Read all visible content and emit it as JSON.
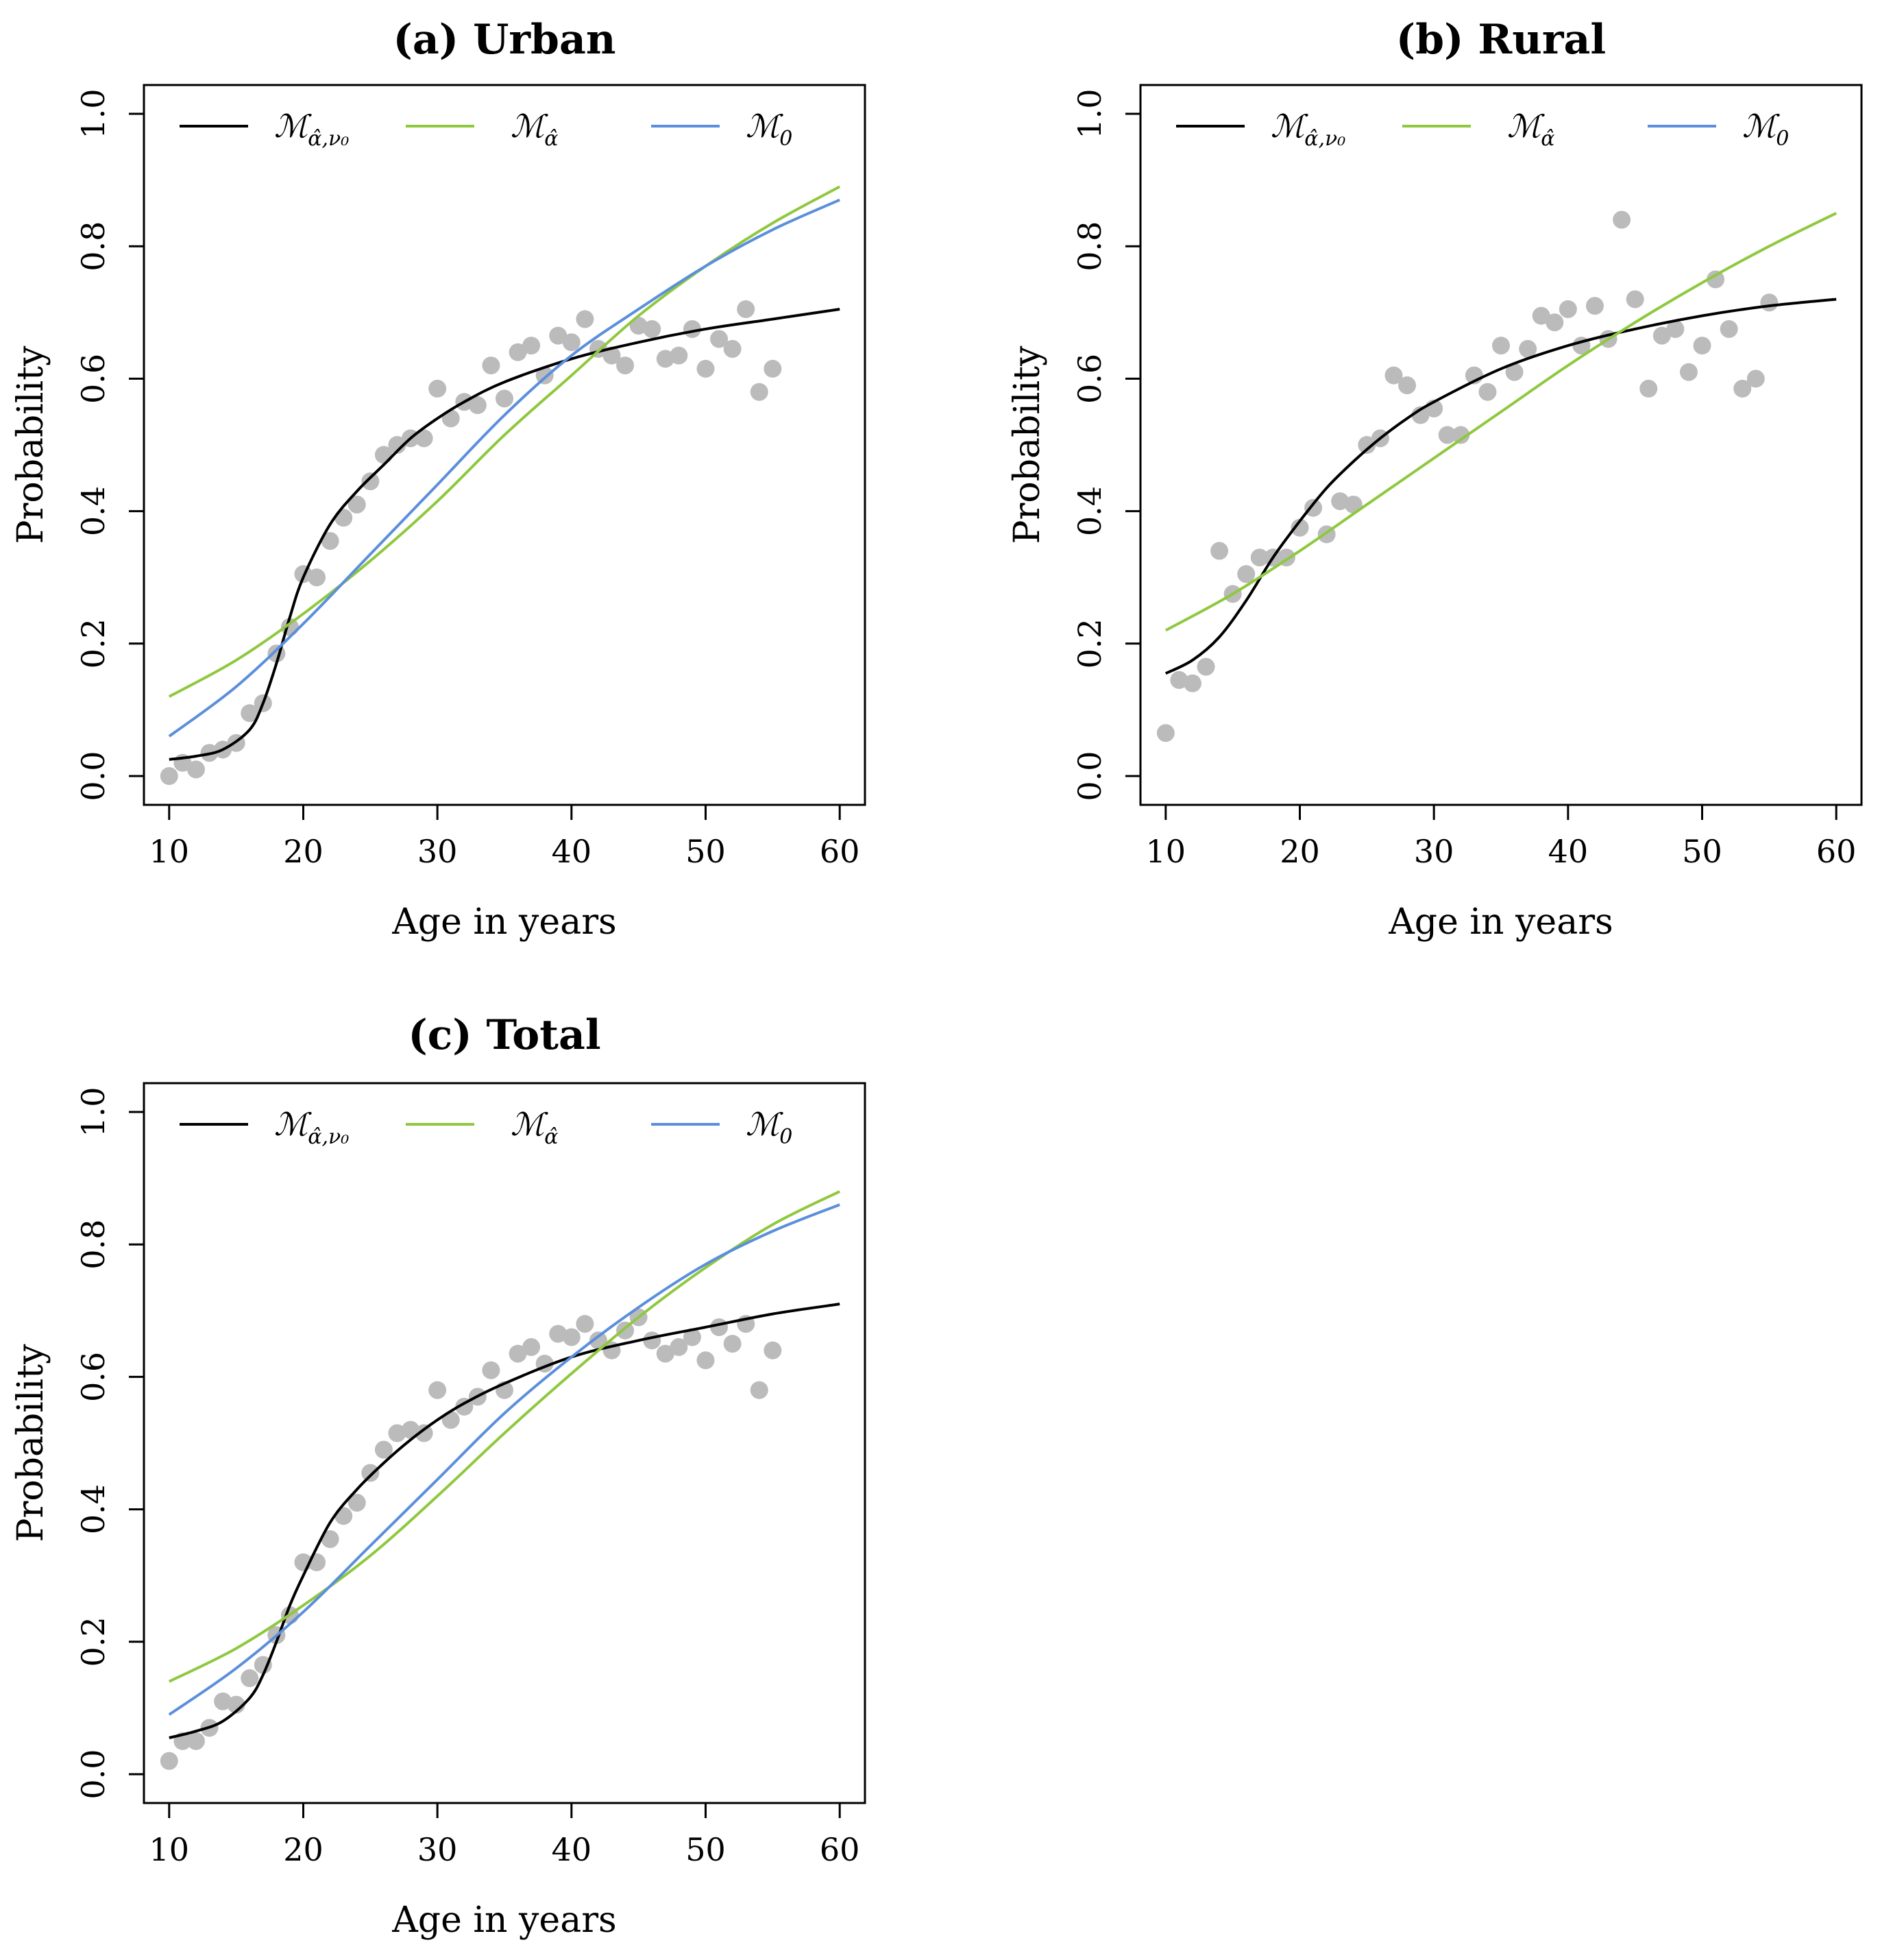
{
  "colors": {
    "black": "#000000",
    "green": "#8fc83f",
    "blue": "#5b8fdc",
    "points": "#bbbbbb"
  },
  "legend": [
    {
      "key": "black",
      "color": "#000000",
      "base": "ℳ",
      "sub": "α̂,ν₀"
    },
    {
      "key": "green",
      "color": "#8fc83f",
      "base": "ℳ",
      "sub": "α̂"
    },
    {
      "key": "blue",
      "color": "#5b8fdc",
      "base": "ℳ",
      "sub": "0"
    }
  ],
  "chart_data": [
    {
      "type": "line",
      "title": "(a) Urban",
      "xlabel": "Age in years",
      "ylabel": "Probability",
      "xlim": [
        10,
        60
      ],
      "ylim": [
        0,
        1
      ],
      "xticks": [
        10,
        20,
        30,
        40,
        50,
        60
      ],
      "yticks": [
        0.0,
        0.2,
        0.4,
        0.6,
        0.8,
        1.0
      ],
      "xtick_labels": [
        "10",
        "20",
        "30",
        "40",
        "50",
        "60"
      ],
      "ytick_labels": [
        "0.0",
        "0.2",
        "0.4",
        "0.6",
        "0.8",
        "1.0"
      ],
      "legend_position": "top",
      "points": {
        "x": [
          10,
          11,
          12,
          13,
          14,
          15,
          16,
          17,
          18,
          19,
          20,
          21,
          22,
          23,
          24,
          25,
          26,
          27,
          28,
          29,
          30,
          31,
          32,
          33,
          34,
          35,
          36,
          37,
          38,
          39,
          40,
          41,
          42,
          43,
          44,
          45,
          46,
          47,
          48,
          49,
          50,
          51,
          52,
          53,
          54,
          55
        ],
        "y": [
          0.0,
          0.02,
          0.01,
          0.035,
          0.04,
          0.05,
          0.095,
          0.11,
          0.185,
          0.225,
          0.305,
          0.3,
          0.355,
          0.39,
          0.41,
          0.445,
          0.485,
          0.5,
          0.51,
          0.51,
          0.585,
          0.54,
          0.565,
          0.56,
          0.62,
          0.57,
          0.64,
          0.65,
          0.605,
          0.665,
          0.655,
          0.69,
          0.645,
          0.635,
          0.62,
          0.68,
          0.675,
          0.63,
          0.635,
          0.675,
          0.615,
          0.66,
          0.645,
          0.705,
          0.58,
          0.615
        ]
      },
      "series": [
        {
          "name": "M_{alpha-hat, nu0}",
          "color": "#000000",
          "x": [
            10,
            12,
            14,
            16,
            17,
            18,
            19,
            20,
            22,
            24,
            26,
            28,
            30,
            32,
            35,
            40,
            45,
            50,
            55,
            60
          ],
          "y": [
            0.025,
            0.03,
            0.04,
            0.07,
            0.11,
            0.17,
            0.24,
            0.3,
            0.38,
            0.43,
            0.47,
            0.51,
            0.54,
            0.565,
            0.595,
            0.63,
            0.655,
            0.675,
            0.69,
            0.705
          ]
        },
        {
          "name": "M_{alpha-hat}",
          "color": "#8fc83f",
          "x": [
            10,
            15,
            20,
            25,
            30,
            35,
            40,
            45,
            50,
            55,
            60
          ],
          "y": [
            0.12,
            0.175,
            0.245,
            0.325,
            0.415,
            0.515,
            0.605,
            0.695,
            0.77,
            0.835,
            0.89
          ]
        },
        {
          "name": "M_0",
          "color": "#5b8fdc",
          "x": [
            10,
            15,
            20,
            25,
            30,
            35,
            40,
            45,
            50,
            55,
            60
          ],
          "y": [
            0.06,
            0.135,
            0.23,
            0.335,
            0.44,
            0.545,
            0.635,
            0.705,
            0.77,
            0.825,
            0.87
          ]
        }
      ]
    },
    {
      "type": "line",
      "title": "(b) Rural",
      "xlabel": "Age in years",
      "ylabel": "Probability",
      "xlim": [
        10,
        60
      ],
      "ylim": [
        0,
        1
      ],
      "xticks": [
        10,
        20,
        30,
        40,
        50,
        60
      ],
      "yticks": [
        0.0,
        0.2,
        0.4,
        0.6,
        0.8,
        1.0
      ],
      "xtick_labels": [
        "10",
        "20",
        "30",
        "40",
        "50",
        "60"
      ],
      "ytick_labels": [
        "0.0",
        "0.2",
        "0.4",
        "0.6",
        "0.8",
        "1.0"
      ],
      "legend_position": "top",
      "points": {
        "x": [
          10,
          11,
          12,
          13,
          14,
          15,
          16,
          17,
          18,
          19,
          20,
          21,
          22,
          23,
          24,
          25,
          26,
          27,
          28,
          29,
          30,
          31,
          32,
          33,
          34,
          35,
          36,
          37,
          38,
          39,
          40,
          41,
          42,
          43,
          44,
          45,
          46,
          47,
          48,
          49,
          50,
          51,
          52,
          53,
          54,
          55
        ],
        "y": [
          0.065,
          0.145,
          0.14,
          0.165,
          0.34,
          0.275,
          0.305,
          0.33,
          0.33,
          0.33,
          0.375,
          0.405,
          0.365,
          0.415,
          0.41,
          0.5,
          0.51,
          0.605,
          0.59,
          0.545,
          0.555,
          0.515,
          0.515,
          0.605,
          0.58,
          0.65,
          0.61,
          0.645,
          0.695,
          0.685,
          0.705,
          0.65,
          0.71,
          0.66,
          0.84,
          0.72,
          0.585,
          0.665,
          0.675,
          0.61,
          0.65,
          0.75,
          0.675,
          0.585,
          0.6,
          0.715
        ]
      },
      "series": [
        {
          "name": "M_{alpha-hat, nu0}",
          "color": "#000000",
          "x": [
            10,
            12,
            14,
            16,
            18,
            20,
            22,
            24,
            26,
            28,
            30,
            35,
            40,
            45,
            50,
            55,
            60
          ],
          "y": [
            0.155,
            0.175,
            0.21,
            0.265,
            0.33,
            0.385,
            0.435,
            0.475,
            0.51,
            0.54,
            0.565,
            0.615,
            0.65,
            0.675,
            0.695,
            0.71,
            0.72
          ]
        },
        {
          "name": "M_{alpha-hat}",
          "color": "#8fc83f",
          "x": [
            10,
            15,
            20,
            25,
            30,
            35,
            40,
            45,
            50,
            55,
            60
          ],
          "y": [
            0.22,
            0.275,
            0.34,
            0.41,
            0.48,
            0.55,
            0.62,
            0.685,
            0.745,
            0.8,
            0.85
          ]
        }
      ]
    },
    {
      "type": "line",
      "title": "(c) Total",
      "xlabel": "Age in years",
      "ylabel": "Probability",
      "xlim": [
        10,
        60
      ],
      "ylim": [
        0,
        1
      ],
      "xticks": [
        10,
        20,
        30,
        40,
        50,
        60
      ],
      "yticks": [
        0.0,
        0.2,
        0.4,
        0.6,
        0.8,
        1.0
      ],
      "xtick_labels": [
        "10",
        "20",
        "30",
        "40",
        "50",
        "60"
      ],
      "ytick_labels": [
        "0.0",
        "0.2",
        "0.4",
        "0.6",
        "0.8",
        "1.0"
      ],
      "legend_position": "top",
      "points": {
        "x": [
          10,
          11,
          12,
          13,
          14,
          15,
          16,
          17,
          18,
          19,
          20,
          21,
          22,
          23,
          24,
          25,
          26,
          27,
          28,
          29,
          30,
          31,
          32,
          33,
          34,
          35,
          36,
          37,
          38,
          39,
          40,
          41,
          42,
          43,
          44,
          45,
          46,
          47,
          48,
          49,
          50,
          51,
          52,
          53,
          54,
          55
        ],
        "y": [
          0.02,
          0.05,
          0.05,
          0.07,
          0.11,
          0.105,
          0.145,
          0.165,
          0.21,
          0.24,
          0.32,
          0.32,
          0.355,
          0.39,
          0.41,
          0.455,
          0.49,
          0.515,
          0.52,
          0.515,
          0.58,
          0.535,
          0.555,
          0.57,
          0.61,
          0.58,
          0.635,
          0.645,
          0.62,
          0.665,
          0.66,
          0.68,
          0.655,
          0.64,
          0.67,
          0.69,
          0.655,
          0.635,
          0.645,
          0.66,
          0.625,
          0.675,
          0.65,
          0.68,
          0.58,
          0.64
        ]
      },
      "series": [
        {
          "name": "M_{alpha-hat, nu0}",
          "color": "#000000",
          "x": [
            10,
            12,
            14,
            16,
            17,
            18,
            19,
            20,
            22,
            24,
            26,
            28,
            30,
            32,
            35,
            40,
            45,
            50,
            55,
            60
          ],
          "y": [
            0.055,
            0.065,
            0.08,
            0.115,
            0.15,
            0.2,
            0.255,
            0.3,
            0.38,
            0.43,
            0.47,
            0.505,
            0.535,
            0.56,
            0.59,
            0.63,
            0.655,
            0.675,
            0.695,
            0.71
          ]
        },
        {
          "name": "M_{alpha-hat}",
          "color": "#8fc83f",
          "x": [
            10,
            15,
            20,
            25,
            30,
            35,
            40,
            45,
            50,
            55,
            60
          ],
          "y": [
            0.14,
            0.19,
            0.255,
            0.33,
            0.42,
            0.515,
            0.605,
            0.69,
            0.765,
            0.83,
            0.88
          ]
        },
        {
          "name": "M_0",
          "color": "#5b8fdc",
          "x": [
            10,
            15,
            20,
            25,
            30,
            35,
            40,
            45,
            50,
            55,
            60
          ],
          "y": [
            0.09,
            0.16,
            0.245,
            0.345,
            0.445,
            0.545,
            0.63,
            0.705,
            0.77,
            0.82,
            0.86
          ]
        }
      ]
    }
  ]
}
